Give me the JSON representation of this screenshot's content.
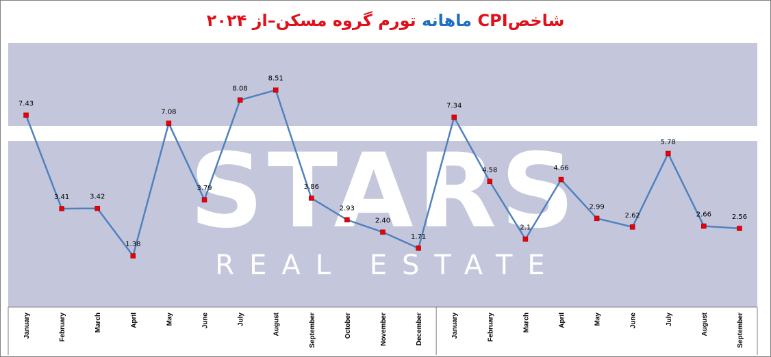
{
  "title": {
    "part1": "شاخص",
    "part2": "CPI",
    "part3": "ماهانه",
    "part4": "تورم گروه مسکن–از ۲۰۲۴"
  },
  "watermark": {
    "main": "STARS",
    "sub": "REAL ESTATE"
  },
  "colors": {
    "line": "#4f81bd",
    "marker": "#e8000b",
    "plot_bg": "#c4c6dc",
    "title_red": "#e0101a",
    "title_blue": "#1f6fc0"
  },
  "chart_data": {
    "type": "line",
    "categories": [
      "January",
      "February",
      "March",
      "April",
      "May",
      "June",
      "July",
      "August",
      "September",
      "October",
      "November",
      "December",
      "January",
      "February",
      "March",
      "April",
      "May",
      "June",
      "July",
      "August",
      "September"
    ],
    "series": [
      {
        "values": [
          7.43,
          3.41,
          3.42,
          1.38,
          7.08,
          3.79,
          8.08,
          8.51,
          3.86,
          2.93,
          2.4,
          1.71,
          7.34,
          4.58,
          2.1,
          4.66,
          2.99,
          2.62,
          5.78,
          2.66,
          2.56
        ],
        "labels": [
          "7.43",
          "3.41",
          "3.42",
          "1.38",
          "7.08",
          "3.79",
          "8.08",
          "8.51",
          "3.86",
          "2.93",
          "2.40",
          "1.71",
          "7.34",
          "4.58",
          "2.1",
          "4.66",
          "2.99",
          "2.62",
          "5.78",
          "2.66",
          "2.56"
        ]
      }
    ],
    "year_groups": [
      {
        "first_index": 0,
        "last_index": 11
      },
      {
        "first_index": 12,
        "last_index": 20
      }
    ],
    "grid": false,
    "legend": "none"
  }
}
